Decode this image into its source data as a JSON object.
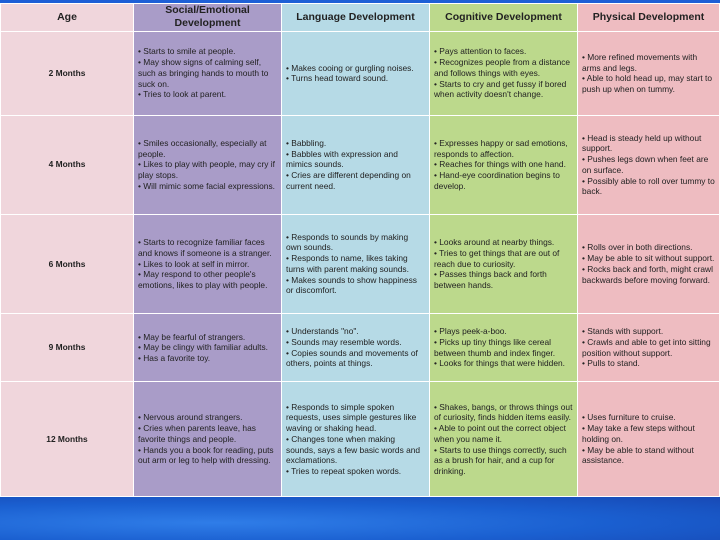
{
  "headers": {
    "age": "Age",
    "social": "Social/Emotional Development",
    "language": "Language Development",
    "cognitive": "Cognitive Development",
    "physical": "Physical Development"
  },
  "rows": [
    {
      "age": "2 Months",
      "social": [
        "• Starts to smile at people.",
        "• May show signs of calming self, such as bringing hands to mouth to suck on.",
        "• Tries to look at parent."
      ],
      "language": [
        "• Makes cooing or gurgling noises.",
        "• Turns head toward sound."
      ],
      "cognitive": [
        "• Pays attention to faces.",
        "• Recognizes people from a distance and follows things with eyes.",
        "• Starts to cry and get fussy if bored when activity doesn't change."
      ],
      "physical": [
        "• More refined movements with arms and legs.",
        "• Able to hold head up, may start to push up when on tummy."
      ]
    },
    {
      "age": "4 Months",
      "social": [
        "• Smiles occasionally, especially at people.",
        "• Likes to play with people, may cry if play stops.",
        "• Will mimic some facial expressions."
      ],
      "language": [
        "• Babbling.",
        "• Babbles with expression and mimics sounds.",
        "• Cries are different depending on current need."
      ],
      "cognitive": [
        "• Expresses happy or sad emotions, responds to affection.",
        "• Reaches for things with one hand.",
        "• Hand-eye coordination begins to develop."
      ],
      "physical": [
        "• Head is steady held up without support.",
        "• Pushes legs down when feet are on surface.",
        "• Possibly able to roll over tummy to back."
      ]
    },
    {
      "age": "6 Months",
      "social": [
        "• Starts to recognize familiar faces and knows if someone is a stranger.",
        "• Likes to look at self in mirror.",
        "• May respond to other people's emotions, likes to play with people."
      ],
      "language": [
        "• Responds to sounds by making own sounds.",
        "• Responds to name, likes taking turns with parent making sounds.",
        "• Makes sounds to show happiness or discomfort."
      ],
      "cognitive": [
        "• Looks around at nearby things.",
        "• Tries to get things that are out of reach due to curiosity.",
        "• Passes things back and forth between hands."
      ],
      "physical": [
        "• Rolls over in both directions.",
        "• May be able to sit without support.",
        "• Rocks back and forth, might crawl backwards before moving forward."
      ]
    },
    {
      "age": "9 Months",
      "social": [
        "• May be fearful of strangers.",
        "• May be clingy with familiar adults.",
        "• Has a favorite toy."
      ],
      "language": [
        "• Understands \"no\".",
        "• Sounds may resemble words.",
        "• Copies sounds and movements of others, points at things."
      ],
      "cognitive": [
        "• Plays peek-a-boo.",
        "• Picks up tiny things like cereal between thumb and index finger.",
        "• Looks for things that were hidden."
      ],
      "physical": [
        "• Stands with support.",
        "• Crawls and able to get into sitting position without support.",
        "• Pulls to stand."
      ]
    },
    {
      "age": "12 Months",
      "social": [
        "• Nervous around strangers.",
        "• Cries when parents leave, has favorite things and people.",
        "• Hands you a book for reading, puts out arm or leg to help with dressing."
      ],
      "language": [
        "• Responds to simple spoken requests, uses simple gestures like waving or shaking head.",
        "• Changes tone when making sounds, says a few basic words and exclamations.",
        "• Tries to repeat spoken words."
      ],
      "cognitive": [
        "• Shakes, bangs, or throws things out of curiosity, finds hidden items easily.",
        "• Able to point out the correct object when you name it.",
        "• Starts to use things correctly, such as a brush for hair, and a cup for drinking."
      ],
      "physical": [
        "• Uses furniture to cruise.",
        "• May take a few steps without holding on.",
        "• May be able to stand without assistance."
      ]
    }
  ]
}
